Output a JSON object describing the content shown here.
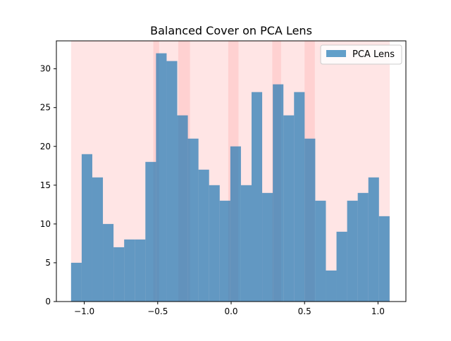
{
  "chart_data": {
    "type": "bar",
    "title": "Balanced Cover on PCA Lens",
    "xlabel": "",
    "ylabel": "",
    "xlim": [
      -1.19,
      1.19
    ],
    "ylim": [
      0,
      33.6
    ],
    "x_ticks": [
      -1.0,
      -0.5,
      0.0,
      0.5,
      1.0
    ],
    "x_tick_labels": [
      "−1.0",
      "−0.5",
      "0.0",
      "0.5",
      "1.0"
    ],
    "y_ticks": [
      0,
      5,
      10,
      15,
      20,
      25,
      30
    ],
    "y_tick_labels": [
      "0",
      "5",
      "10",
      "15",
      "20",
      "25",
      "30"
    ],
    "grid": false,
    "legend": {
      "placement": "top-right",
      "entries": [
        {
          "label": "PCA Lens",
          "color": "#1f77b4"
        }
      ]
    },
    "histogram": {
      "bin_start": -1.09,
      "bin_width": 0.0723,
      "counts": [
        5,
        19,
        16,
        10,
        7,
        8,
        8,
        18,
        32,
        31,
        24,
        21,
        17,
        15,
        13,
        20,
        15,
        27,
        14,
        28,
        24,
        27,
        21,
        13,
        4,
        9,
        13,
        14,
        16,
        11
      ],
      "color": "#1f77b4",
      "alpha": 0.7
    },
    "cover_intervals": [
      [
        -1.09,
        -0.49
      ],
      [
        -0.53,
        -0.28
      ],
      [
        -0.36,
        0.05
      ],
      [
        -0.02,
        0.34
      ],
      [
        0.28,
        0.57
      ],
      [
        0.5,
        1.08
      ]
    ],
    "cover_color": "#ff9999",
    "cover_alpha": 0.25
  }
}
